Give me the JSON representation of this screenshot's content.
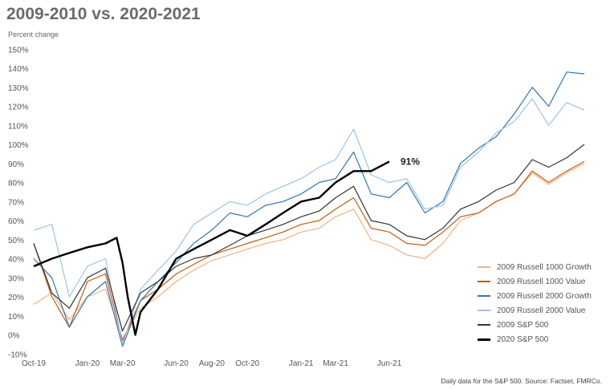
{
  "chart_data": {
    "type": "line",
    "title": "2009-2010 vs. 2020-2021",
    "ylabel": "Percent change",
    "xlabel": "",
    "ylim": [
      -10,
      150
    ],
    "yticks": [
      "150%",
      "140%",
      "130%",
      "120%",
      "110%",
      "100%",
      "90%",
      "80%",
      "70%",
      "60%",
      "50%",
      "40%",
      "30%",
      "20%",
      "10%",
      "0%",
      "-10%"
    ],
    "ytick_values": [
      150,
      140,
      130,
      120,
      110,
      100,
      90,
      80,
      70,
      60,
      50,
      40,
      30,
      20,
      10,
      0,
      -10
    ],
    "xticks": [
      {
        "label": "Oct-19",
        "date": "2019-10-01"
      },
      {
        "label": "Jan-20",
        "date": "2020-01-01"
      },
      {
        "label": "Mar-20",
        "date": "2020-03-01"
      },
      {
        "label": "Jun-20",
        "date": "2020-06-01"
      },
      {
        "label": "Aug-20",
        "date": "2020-08-01"
      },
      {
        "label": "Oct-20",
        "date": "2020-10-01"
      },
      {
        "label": "Jan-21",
        "date": "2021-01-01"
      },
      {
        "label": "Mar-21",
        "date": "2021-03-01"
      },
      {
        "label": "Jun-21",
        "date": "2021-06-01"
      }
    ],
    "grid": false,
    "legend_position": "bottom-right",
    "monthly_x": [
      "2019-10-01",
      "2019-11-01",
      "2019-12-01",
      "2020-01-01",
      "2020-02-01",
      "2020-03-01",
      "2020-04-01",
      "2020-05-01",
      "2020-06-01",
      "2020-07-01",
      "2020-08-01",
      "2020-09-01",
      "2020-10-01",
      "2020-11-01",
      "2020-12-01",
      "2021-01-01",
      "2021-02-01",
      "2021-03-01",
      "2021-04-01",
      "2021-05-01",
      "2021-06-01",
      "2021-07-01",
      "2021-08-01",
      "2021-09-01",
      "2021-10-01",
      "2021-11-01",
      "2021-12-01",
      "2022-01-01",
      "2022-02-01",
      "2022-03-01",
      "2022-04-01",
      "2022-05-01"
    ],
    "series": [
      {
        "name": "2009 Russell 1000 Growth",
        "color": "#f4b183",
        "width": 1.2,
        "values": [
          16,
          22,
          8,
          20,
          24,
          -2,
          14,
          20,
          28,
          34,
          39,
          42,
          45,
          48,
          50,
          54,
          56,
          62,
          66,
          50,
          47,
          42,
          40,
          48,
          60,
          64,
          70,
          74,
          85,
          79,
          85,
          90
        ]
      },
      {
        "name": "2009 Russell 1000 Value",
        "color": "#c55a11",
        "width": 1.2,
        "values": [
          48,
          20,
          4,
          28,
          32,
          -3,
          18,
          24,
          32,
          37,
          42,
          45,
          48,
          51,
          54,
          58,
          60,
          66,
          72,
          56,
          54,
          48,
          47,
          54,
          62,
          64,
          70,
          74,
          86,
          80,
          86,
          91
        ]
      },
      {
        "name": "2009 Russell 2000 Growth",
        "color": "#2e75b6",
        "width": 1.2,
        "values": [
          40,
          30,
          4,
          20,
          28,
          -6,
          18,
          28,
          38,
          48,
          55,
          64,
          62,
          68,
          70,
          74,
          80,
          82,
          96,
          74,
          72,
          80,
          64,
          70,
          90,
          98,
          104,
          116,
          130,
          120,
          138,
          137
        ]
      },
      {
        "name": "2009 Russell 2000 Value",
        "color": "#9dc3e6",
        "width": 1.2,
        "values": [
          55,
          58,
          20,
          36,
          40,
          -5,
          24,
          34,
          44,
          58,
          64,
          70,
          68,
          74,
          78,
          82,
          88,
          92,
          108,
          84,
          80,
          82,
          66,
          68,
          88,
          96,
          106,
          112,
          124,
          110,
          122,
          118
        ]
      },
      {
        "name": "2009 S&P 500",
        "color": "#333333",
        "width": 1.2,
        "values": [
          48,
          22,
          14,
          30,
          35,
          2,
          22,
          28,
          36,
          40,
          42,
          47,
          52,
          55,
          58,
          62,
          65,
          72,
          78,
          60,
          58,
          52,
          50,
          56,
          66,
          70,
          76,
          80,
          92,
          88,
          93,
          100
        ]
      },
      {
        "name": "2020 S&P 500",
        "color": "#000000",
        "width": 2.4,
        "x": [
          "2019-10-01",
          "2019-11-01",
          "2019-12-01",
          "2020-01-01",
          "2020-02-01",
          "2020-02-20",
          "2020-03-01",
          "2020-03-10",
          "2020-03-23",
          "2020-04-01",
          "2020-05-01",
          "2020-06-01",
          "2020-07-01",
          "2020-08-01",
          "2020-09-01",
          "2020-10-01",
          "2020-11-01",
          "2020-12-01",
          "2021-01-01",
          "2021-02-01",
          "2021-03-01",
          "2021-04-01",
          "2021-05-01",
          "2021-06-01"
        ],
        "values": [
          36,
          40,
          43,
          46,
          48,
          51,
          38,
          20,
          0,
          12,
          24,
          40,
          45,
          50,
          55,
          52,
          58,
          64,
          70,
          72,
          80,
          86,
          86,
          91
        ]
      }
    ],
    "annotations": [
      {
        "text": "91%",
        "series": "2020 S&P 500",
        "date": "2021-06-01",
        "value": 91
      }
    ]
  },
  "footnote": "Daily data for the S&P 500. Source: Factset, FMRCo."
}
